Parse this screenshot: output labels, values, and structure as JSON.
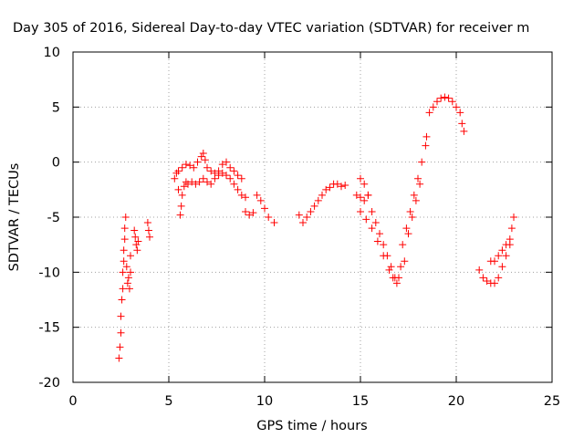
{
  "chart_data": {
    "type": "scatter",
    "title": "Day 305 of 2016, Sidereal Day-to-day VTEC variation (SDTVAR) for receiver m",
    "xlabel": "GPS time / hours",
    "ylabel": "SDTVAR / TECUs",
    "xlim": [
      0,
      25
    ],
    "ylim": [
      -20,
      10
    ],
    "xticks": [
      "0",
      "5",
      "10",
      "15",
      "20",
      "25"
    ],
    "yticks": [
      "-20",
      "-15",
      "-10",
      "-5",
      "0",
      "5",
      "10"
    ],
    "grid": true,
    "marker": "+",
    "marker_color": "#ff0000",
    "series": [
      {
        "values": [
          [
            2.4,
            -17.8
          ],
          [
            2.45,
            -16.8
          ],
          [
            2.5,
            -15.5
          ],
          [
            2.5,
            -14.0
          ],
          [
            2.55,
            -12.5
          ],
          [
            2.6,
            -11.5
          ],
          [
            2.6,
            -10.0
          ],
          [
            2.65,
            -9.0
          ],
          [
            2.65,
            -8.0
          ],
          [
            2.7,
            -7.0
          ],
          [
            2.7,
            -6.0
          ],
          [
            2.75,
            -5.0
          ],
          [
            2.8,
            -9.5
          ],
          [
            2.85,
            -11.0
          ],
          [
            2.9,
            -10.5
          ],
          [
            2.95,
            -11.5
          ],
          [
            3.0,
            -10.0
          ],
          [
            3.0,
            -8.5
          ],
          [
            3.2,
            -6.2
          ],
          [
            3.25,
            -6.8
          ],
          [
            3.3,
            -7.5
          ],
          [
            3.35,
            -8.0
          ],
          [
            3.4,
            -7.2
          ],
          [
            3.9,
            -5.5
          ],
          [
            3.95,
            -6.2
          ],
          [
            4.0,
            -6.8
          ],
          [
            5.3,
            -1.5
          ],
          [
            5.4,
            -1.0
          ],
          [
            5.5,
            -2.5
          ],
          [
            5.6,
            -4.8
          ],
          [
            5.65,
            -4.0
          ],
          [
            5.7,
            -3.0
          ],
          [
            5.8,
            -2.2
          ],
          [
            5.9,
            -1.8
          ],
          [
            6.0,
            -2.0
          ],
          [
            6.2,
            -1.8
          ],
          [
            6.4,
            -2.0
          ],
          [
            6.6,
            -1.8
          ],
          [
            6.8,
            -1.5
          ],
          [
            7.0,
            -1.8
          ],
          [
            7.2,
            -2.0
          ],
          [
            7.4,
            -1.5
          ],
          [
            7.6,
            -1.2
          ],
          [
            7.8,
            -1.0
          ],
          [
            8.0,
            -1.2
          ],
          [
            8.2,
            -1.5
          ],
          [
            8.4,
            -2.0
          ],
          [
            8.6,
            -2.5
          ],
          [
            8.8,
            -3.0
          ],
          [
            9.0,
            -3.2
          ],
          [
            5.5,
            -0.8
          ],
          [
            5.7,
            -0.5
          ],
          [
            5.9,
            -0.2
          ],
          [
            6.1,
            -0.3
          ],
          [
            6.3,
            -0.5
          ],
          [
            6.5,
            0.0
          ],
          [
            6.7,
            0.5
          ],
          [
            6.8,
            0.8
          ],
          [
            6.9,
            0.2
          ],
          [
            7.0,
            -0.5
          ],
          [
            7.2,
            -0.8
          ],
          [
            7.4,
            -1.0
          ],
          [
            7.6,
            -0.8
          ],
          [
            7.8,
            -0.2
          ],
          [
            8.0,
            0.0
          ],
          [
            8.2,
            -0.5
          ],
          [
            8.4,
            -0.8
          ],
          [
            8.6,
            -1.2
          ],
          [
            8.8,
            -1.5
          ],
          [
            9.0,
            -4.5
          ],
          [
            9.2,
            -4.8
          ],
          [
            9.4,
            -4.6
          ],
          [
            9.6,
            -3.0
          ],
          [
            9.8,
            -3.5
          ],
          [
            10.0,
            -4.2
          ],
          [
            10.2,
            -5.0
          ],
          [
            10.5,
            -5.5
          ],
          [
            11.8,
            -4.8
          ],
          [
            12.0,
            -5.5
          ],
          [
            12.2,
            -5.0
          ],
          [
            12.4,
            -4.5
          ],
          [
            12.6,
            -4.0
          ],
          [
            12.8,
            -3.5
          ],
          [
            13.0,
            -3.0
          ],
          [
            13.2,
            -2.5
          ],
          [
            13.4,
            -2.3
          ],
          [
            13.6,
            -2.0
          ],
          [
            13.8,
            -2.0
          ],
          [
            14.0,
            -2.2
          ],
          [
            14.2,
            -2.1
          ],
          [
            14.8,
            -3.0
          ],
          [
            15.0,
            -3.2
          ],
          [
            15.2,
            -3.5
          ],
          [
            15.4,
            -3.0
          ],
          [
            15.0,
            -1.5
          ],
          [
            15.2,
            -2.0
          ],
          [
            15.4,
            -3.0
          ],
          [
            15.6,
            -4.5
          ],
          [
            15.8,
            -5.5
          ],
          [
            16.0,
            -6.5
          ],
          [
            16.2,
            -7.5
          ],
          [
            16.4,
            -8.5
          ],
          [
            16.6,
            -9.5
          ],
          [
            16.8,
            -10.5
          ],
          [
            16.9,
            -11.0
          ],
          [
            17.0,
            -10.5
          ],
          [
            17.1,
            -9.5
          ],
          [
            15.0,
            -4.5
          ],
          [
            15.3,
            -5.2
          ],
          [
            15.6,
            -6.0
          ],
          [
            15.9,
            -7.2
          ],
          [
            16.2,
            -8.5
          ],
          [
            16.5,
            -9.8
          ],
          [
            16.7,
            -10.5
          ],
          [
            17.2,
            -7.5
          ],
          [
            17.4,
            -6.0
          ],
          [
            17.6,
            -4.5
          ],
          [
            17.8,
            -3.0
          ],
          [
            18.0,
            -1.5
          ],
          [
            18.2,
            0.0
          ],
          [
            18.4,
            1.5
          ],
          [
            18.45,
            2.3
          ],
          [
            17.3,
            -9.0
          ],
          [
            17.5,
            -6.5
          ],
          [
            17.7,
            -5.0
          ],
          [
            17.9,
            -3.5
          ],
          [
            18.1,
            -2.0
          ],
          [
            18.6,
            4.5
          ],
          [
            18.8,
            5.0
          ],
          [
            19.0,
            5.5
          ],
          [
            19.2,
            5.8
          ],
          [
            19.4,
            5.9
          ],
          [
            19.6,
            5.8
          ],
          [
            19.8,
            5.5
          ],
          [
            20.0,
            5.0
          ],
          [
            20.2,
            4.5
          ],
          [
            20.3,
            3.5
          ],
          [
            20.4,
            2.8
          ],
          [
            21.2,
            -9.8
          ],
          [
            21.4,
            -10.5
          ],
          [
            21.6,
            -10.8
          ],
          [
            21.8,
            -11.0
          ],
          [
            22.0,
            -11.0
          ],
          [
            22.2,
            -10.5
          ],
          [
            22.4,
            -9.5
          ],
          [
            22.6,
            -8.5
          ],
          [
            22.8,
            -7.5
          ],
          [
            22.9,
            -6.0
          ],
          [
            23.0,
            -5.0
          ],
          [
            21.8,
            -9.0
          ],
          [
            22.0,
            -9.0
          ],
          [
            22.2,
            -8.5
          ],
          [
            22.4,
            -8.0
          ],
          [
            22.6,
            -7.5
          ],
          [
            22.8,
            -7.0
          ]
        ]
      }
    ]
  }
}
